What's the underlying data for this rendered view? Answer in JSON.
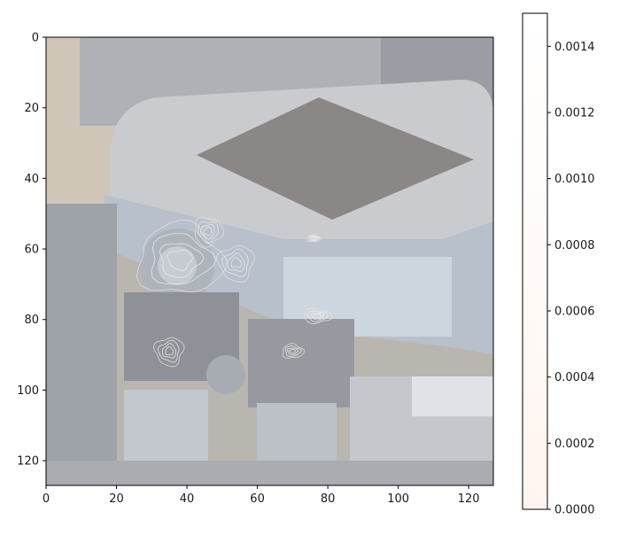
{
  "chart_data": {
    "type": "heatmap",
    "title": "",
    "xlabel": "",
    "ylabel": "",
    "xlim": [
      0,
      127
    ],
    "ylim": [
      127,
      0
    ],
    "x_ticks": [
      0,
      20,
      40,
      60,
      80,
      100,
      120
    ],
    "y_ticks": [
      0,
      20,
      40,
      60,
      80,
      100,
      120
    ],
    "x_tick_labels": [
      "0",
      "20",
      "40",
      "60",
      "80",
      "100",
      "120"
    ],
    "y_tick_labels": [
      "0",
      "20",
      "40",
      "60",
      "80",
      "100",
      "120"
    ],
    "background_image": "photo of a grey robotic gripper / mechanical part",
    "contour_overlay": {
      "style": "thin light contour lines",
      "regions": [
        {
          "cx": 38,
          "cy": 63,
          "rx": 12,
          "ry": 10
        },
        {
          "cx": 46,
          "cy": 55,
          "rx": 4,
          "ry": 4
        },
        {
          "cx": 54,
          "cy": 64,
          "rx": 5,
          "ry": 5
        },
        {
          "cx": 35,
          "cy": 89,
          "rx": 4,
          "ry": 4
        },
        {
          "cx": 70,
          "cy": 89,
          "rx": 3,
          "ry": 2
        },
        {
          "cx": 77,
          "cy": 79,
          "rx": 4,
          "ry": 2
        },
        {
          "cx": 76,
          "cy": 57,
          "rx": 2,
          "ry": 1
        }
      ]
    },
    "colorbar": {
      "min": 0.0,
      "max": 0.0015,
      "ticks": [
        0.0,
        0.0002,
        0.0004,
        0.0006,
        0.0008,
        0.001,
        0.0012,
        0.0014
      ],
      "tick_labels": [
        "0.0000",
        "0.0002",
        "0.0004",
        "0.0006",
        "0.0008",
        "0.0010",
        "0.0012",
        "0.0014"
      ],
      "colormap_low": "#fff5f0",
      "colormap_high": "#ffffff"
    }
  }
}
